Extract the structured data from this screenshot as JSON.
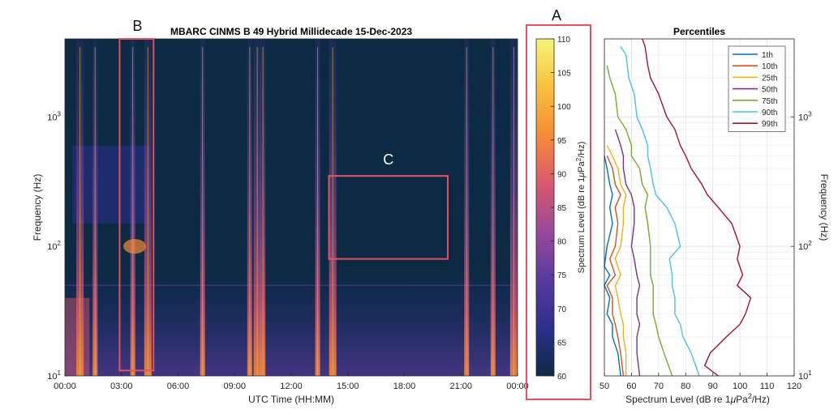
{
  "chart_data": [
    {
      "type": "heatmap",
      "title": "MBARC CINMS B 49 Hybrid Millidecade 15-Dec-2023",
      "xlabel": "UTC Time (HH:MM)",
      "ylabel": "Frequency (Hz)",
      "x_ticks": [
        "00:00",
        "03:00",
        "06:00",
        "09:00",
        "12:00",
        "15:00",
        "18:00",
        "21:00",
        "00:00"
      ],
      "y_scale": "log",
      "ylim": [
        10,
        4000
      ],
      "y_ticks": [
        {
          "base": "10",
          "exp": "1"
        },
        {
          "base": "10",
          "exp": "2"
        },
        {
          "base": "10",
          "exp": "3"
        }
      ],
      "colormap": [
        "#0d2a45",
        "#2c2f8c",
        "#5b3a9e",
        "#9a4a9a",
        "#d9586f",
        "#f58a38",
        "#f7c23e",
        "#f5f57a"
      ],
      "vertical_events_hours": [
        0.8,
        1.6,
        3.6,
        4.4,
        7.3,
        9.8,
        10.2,
        10.5,
        13.4,
        14.2,
        21.3,
        22.7,
        23.8
      ],
      "regions": [
        {
          "label": "B",
          "x_hours": [
            2.9,
            4.7
          ],
          "freq_hz": [
            11,
            4000
          ]
        },
        {
          "label": "C",
          "x_hours": [
            14.0,
            20.3
          ],
          "freq_hz": [
            80,
            350
          ]
        }
      ]
    },
    {
      "type": "colorbar",
      "label_text": "Spectrum Level (dB re 1",
      "label_mu": "μ",
      "label_tail": "Pa",
      "label_sup": "2",
      "label_end": "/Hz)",
      "range": [
        60,
        110
      ],
      "ticks": [
        "60",
        "65",
        "70",
        "75",
        "80",
        "85",
        "90",
        "95",
        "100",
        "105",
        "110"
      ],
      "region_label": "A"
    },
    {
      "type": "line",
      "title": "Percentiles",
      "xlabel_text": "Spectrum Level (dB re 1",
      "xlabel_mu": "μ",
      "xlabel_tail": "Pa",
      "xlabel_sup": "2",
      "xlabel_end": "/Hz)",
      "ylabel": "Frequency (Hz)",
      "xlim": [
        50,
        120
      ],
      "x_ticks": [
        "50",
        "60",
        "70",
        "80",
        "90",
        "100",
        "110",
        "120"
      ],
      "y_scale": "log",
      "ylim": [
        10,
        4000
      ],
      "y_ticks": [
        {
          "base": "10",
          "exp": "1"
        },
        {
          "base": "10",
          "exp": "2"
        },
        {
          "base": "10",
          "exp": "3"
        }
      ],
      "legend_position": "top-right",
      "series": [
        {
          "name": "1th",
          "color": "#0072bd",
          "points": [
            [
              56,
              10
            ],
            [
              55,
              15
            ],
            [
              53,
              20
            ],
            [
              53,
              25
            ],
            [
              51,
              30
            ],
            [
              52,
              40
            ],
            [
              50,
              50
            ],
            [
              52,
              60
            ],
            [
              50,
              70
            ],
            [
              51,
              100
            ],
            [
              53,
              150
            ],
            [
              52,
              200
            ],
            [
              53,
              250
            ],
            [
              52,
              300
            ],
            [
              51,
              400
            ],
            [
              50,
              500
            ]
          ]
        },
        {
          "name": "10th",
          "color": "#d95319",
          "points": [
            [
              57,
              10
            ],
            [
              56,
              15
            ],
            [
              55,
              20
            ],
            [
              54,
              25
            ],
            [
              53,
              30
            ],
            [
              53,
              40
            ],
            [
              51,
              50
            ],
            [
              54,
              60
            ],
            [
              52,
              80
            ],
            [
              54,
              100
            ],
            [
              55,
              150
            ],
            [
              54,
              200
            ],
            [
              56,
              250
            ],
            [
              54,
              300
            ],
            [
              53,
              400
            ],
            [
              51,
              500
            ]
          ]
        },
        {
          "name": "25th",
          "color": "#edb120",
          "points": [
            [
              58,
              10
            ],
            [
              58,
              15
            ],
            [
              57,
              20
            ],
            [
              57,
              25
            ],
            [
              56,
              30
            ],
            [
              55,
              40
            ],
            [
              54,
              50
            ],
            [
              56,
              60
            ],
            [
              54,
              80
            ],
            [
              56,
              100
            ],
            [
              57,
              150
            ],
            [
              57,
              200
            ],
            [
              58,
              250
            ],
            [
              56,
              300
            ],
            [
              55,
              400
            ],
            [
              53,
              500
            ],
            [
              51,
              600
            ]
          ]
        },
        {
          "name": "50th",
          "color": "#7e2f8e",
          "points": [
            [
              63,
              10
            ],
            [
              62,
              15
            ],
            [
              62,
              20
            ],
            [
              63,
              25
            ],
            [
              62,
              30
            ],
            [
              62,
              40
            ],
            [
              63,
              50
            ],
            [
              62,
              60
            ],
            [
              61,
              80
            ],
            [
              60,
              100
            ],
            [
              61,
              150
            ],
            [
              61,
              200
            ],
            [
              60,
              250
            ],
            [
              58,
              300
            ],
            [
              57,
              400
            ],
            [
              57,
              500
            ],
            [
              56,
              600
            ],
            [
              55,
              700
            ],
            [
              54,
              800
            ]
          ]
        },
        {
          "name": "75th",
          "color": "#77ac30",
          "points": [
            [
              75,
              10
            ],
            [
              72,
              15
            ],
            [
              70,
              20
            ],
            [
              69,
              25
            ],
            [
              68,
              30
            ],
            [
              68,
              40
            ],
            [
              68,
              50
            ],
            [
              67,
              60
            ],
            [
              67,
              80
            ],
            [
              67,
              100
            ],
            [
              66,
              150
            ],
            [
              65,
              200
            ],
            [
              66,
              250
            ],
            [
              64,
              300
            ],
            [
              63,
              400
            ],
            [
              60,
              500
            ],
            [
              60,
              600
            ],
            [
              58,
              800
            ],
            [
              55,
              1000
            ],
            [
              54,
              1500
            ],
            [
              52,
              2000
            ],
            [
              51,
              2500
            ]
          ]
        },
        {
          "name": "90th",
          "color": "#4dbeee",
          "points": [
            [
              85,
              10
            ],
            [
              82,
              15
            ],
            [
              79,
              20
            ],
            [
              78,
              25
            ],
            [
              76,
              30
            ],
            [
              76,
              40
            ],
            [
              75,
              50
            ],
            [
              75,
              60
            ],
            [
              74,
              80
            ],
            [
              78,
              100
            ],
            [
              76,
              150
            ],
            [
              73,
              200
            ],
            [
              69,
              250
            ],
            [
              68,
              300
            ],
            [
              67,
              400
            ],
            [
              66,
              500
            ],
            [
              66,
              600
            ],
            [
              64,
              800
            ],
            [
              62,
              1000
            ],
            [
              61,
              1500
            ],
            [
              59,
              2000
            ],
            [
              58,
              3000
            ],
            [
              56,
              3500
            ]
          ]
        },
        {
          "name": "99th",
          "color": "#a2142f",
          "points": [
            [
              92,
              10
            ],
            [
              87,
              12
            ],
            [
              89,
              15
            ],
            [
              95,
              20
            ],
            [
              100,
              25
            ],
            [
              102,
              30
            ],
            [
              104,
              40
            ],
            [
              99,
              50
            ],
            [
              101,
              60
            ],
            [
              99,
              80
            ],
            [
              100,
              100
            ],
            [
              97,
              150
            ],
            [
              92,
              200
            ],
            [
              88,
              250
            ],
            [
              86,
              300
            ],
            [
              82,
              400
            ],
            [
              80,
              500
            ],
            [
              78,
              600
            ],
            [
              76,
              800
            ],
            [
              73,
              1000
            ],
            [
              70,
              1500
            ],
            [
              67,
              2000
            ],
            [
              66,
              2500
            ],
            [
              65,
              3500
            ],
            [
              64,
              4000
            ]
          ]
        }
      ]
    }
  ]
}
